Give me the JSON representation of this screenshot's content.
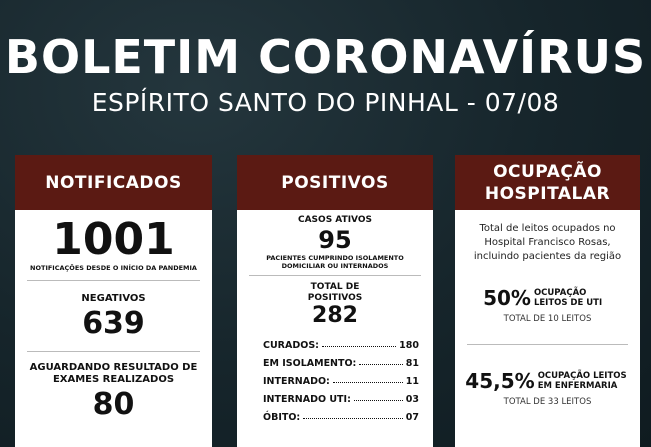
{
  "header": {
    "title": "BOLETIM CORONAVÍRUS",
    "subtitle": "ESPÍRITO SANTO DO PINHAL - 07/08"
  },
  "notificados": {
    "title": "NOTIFICADOS",
    "total": "1001",
    "total_note": "NOTIFICAÇÕES DESDE O INÍCIO DA PANDEMIA",
    "negativos_label": "NEGATIVOS",
    "negativos": "639",
    "aguardando_label": "AGUARDANDO RESULTADO DE EXAMES REALIZADOS",
    "aguardando": "80"
  },
  "positivos": {
    "title": "POSITIVOS",
    "ativos_label": "CASOS ATIVOS",
    "ativos": "95",
    "ativos_note": "PACIENTES CUMPRINDO ISOLAMENTO DOMICILIAR OU INTERNADOS",
    "total_label": "TOTAL DE POSITIVOS",
    "total": "282",
    "rows": [
      {
        "label": "CURADOS:",
        "value": "180"
      },
      {
        "label": "EM ISOLAMENTO:",
        "value": "81"
      },
      {
        "label": "INTERNADO:",
        "value": "11"
      },
      {
        "label": "INTERNADO UTI:",
        "value": "03"
      },
      {
        "label": "ÓBITO:",
        "value": "07"
      }
    ]
  },
  "ocupacao": {
    "title": "OCUPAÇÃO HOSPITALAR",
    "intro": "Total de leitos ocupados no Hospital Francisco Rosas, incluindo pacientes da região",
    "uti": {
      "percent": "50%",
      "label": "OCUPAÇÃO LEITOS DE UTI",
      "total": "TOTAL DE 10 LEITOS"
    },
    "enfermaria": {
      "percent": "45,5%",
      "label": "OCUPAÇÃO LEITOS EM ENFERMARIA",
      "total": "TOTAL DE 33 LEITOS"
    }
  }
}
